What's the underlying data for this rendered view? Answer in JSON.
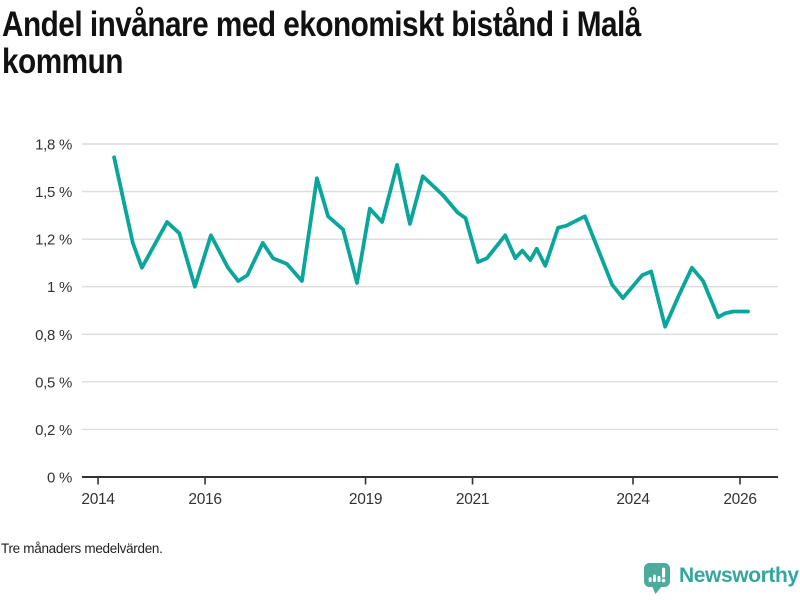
{
  "title_lines": [
    "Andel invånare med ekonomiskt bistånd i Malå",
    "kommun"
  ],
  "footnote": "Tre månaders medelvärden.",
  "branding": {
    "label": "Newsworthy",
    "icon": "bar-chart-speech-pin-icon"
  },
  "colors": {
    "line": "#0aa69c",
    "grid": "#dcdcdc",
    "axis": "#333333",
    "tick_text": "#333333",
    "title_text": "#111111",
    "footnote_text": "#222222",
    "logo_icon": "#4cab9b",
    "logo_text": "#35a69d"
  },
  "chart_data": {
    "type": "line",
    "title": "Andel invånare med ekonomiskt bistånd i Malå kommun",
    "note": "Tre månaders medelvärden.",
    "unit": "%",
    "xlabel": "",
    "ylabel": "",
    "grid": "horizontal",
    "legend": "none",
    "ylim": [
      0,
      1.75
    ],
    "xlim": [
      2013.7,
      2026.71
    ],
    "y_ticks": [
      {
        "value": 1.75,
        "label": "1,8 %"
      },
      {
        "value": 1.5,
        "label": "1,5 %"
      },
      {
        "value": 1.25,
        "label": "1,2 %"
      },
      {
        "value": 1.0,
        "label": "1 %"
      },
      {
        "value": 0.75,
        "label": "0,8 %"
      },
      {
        "value": 0.5,
        "label": "0,5 %"
      },
      {
        "value": 0.25,
        "label": "0,2 %"
      },
      {
        "value": 0,
        "label": "0 %"
      }
    ],
    "x_ticks": [
      {
        "t": 2014,
        "label": "2014"
      },
      {
        "t": 2016,
        "label": "2016"
      },
      {
        "t": 2019,
        "label": "2019"
      },
      {
        "t": 2021,
        "label": "2021"
      },
      {
        "t": 2024,
        "label": "2024"
      },
      {
        "t": 2026,
        "label": "2026"
      }
    ],
    "points": [
      [
        2014.3,
        1.68
      ],
      [
        2014.65,
        1.23
      ],
      [
        2014.82,
        1.1
      ],
      [
        2015.29,
        1.34
      ],
      [
        2015.52,
        1.28
      ],
      [
        2015.81,
        1.0
      ],
      [
        2016.11,
        1.27
      ],
      [
        2016.43,
        1.1
      ],
      [
        2016.62,
        1.03
      ],
      [
        2016.79,
        1.06
      ],
      [
        2017.08,
        1.23
      ],
      [
        2017.27,
        1.15
      ],
      [
        2017.53,
        1.12
      ],
      [
        2017.81,
        1.03
      ],
      [
        2018.09,
        1.57
      ],
      [
        2018.3,
        1.37
      ],
      [
        2018.58,
        1.3
      ],
      [
        2018.84,
        1.02
      ],
      [
        2019.08,
        1.41
      ],
      [
        2019.31,
        1.34
      ],
      [
        2019.59,
        1.64
      ],
      [
        2019.83,
        1.33
      ],
      [
        2020.07,
        1.58
      ],
      [
        2020.45,
        1.48
      ],
      [
        2020.72,
        1.39
      ],
      [
        2020.87,
        1.36
      ],
      [
        2021.1,
        1.13
      ],
      [
        2021.27,
        1.15
      ],
      [
        2021.61,
        1.27
      ],
      [
        2021.8,
        1.15
      ],
      [
        2021.93,
        1.19
      ],
      [
        2022.08,
        1.14
      ],
      [
        2022.2,
        1.2
      ],
      [
        2022.36,
        1.11
      ],
      [
        2022.6,
        1.31
      ],
      [
        2022.75,
        1.32
      ],
      [
        2023.1,
        1.37
      ],
      [
        2023.61,
        1.01
      ],
      [
        2023.81,
        0.94
      ],
      [
        2024.17,
        1.06
      ],
      [
        2024.34,
        1.08
      ],
      [
        2024.6,
        0.79
      ],
      [
        2024.85,
        0.95
      ],
      [
        2025.1,
        1.1
      ],
      [
        2025.31,
        1.03
      ],
      [
        2025.59,
        0.84
      ],
      [
        2025.72,
        0.86
      ],
      [
        2025.87,
        0.87
      ],
      [
        2026.15,
        0.87
      ]
    ]
  }
}
